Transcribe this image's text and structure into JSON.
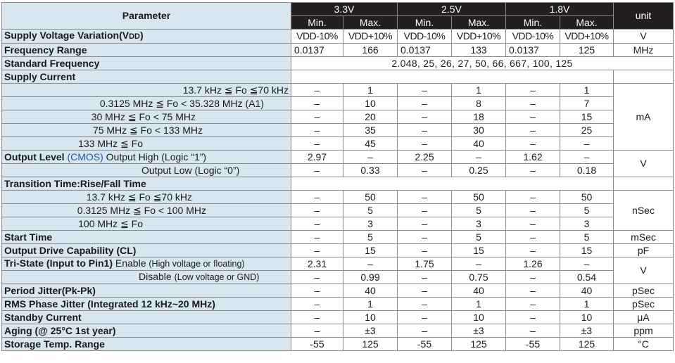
{
  "header": {
    "parameter": "Parameter",
    "unit": "unit",
    "groups": [
      "3.3V",
      "2.5V",
      "1.8V"
    ],
    "min": "Min.",
    "max": "Max."
  },
  "rows": {
    "supply_voltage": {
      "label": "Supply Voltage Variation(V",
      "label_sub": "DD",
      "label_end": ")",
      "values": [
        "VDD-10%",
        "VDD+10%",
        "VDD-10%",
        "VDD+10%",
        "VDD-10%",
        "VDD+10%"
      ],
      "unit": "V"
    },
    "frequency_range": {
      "label": "Frequency Range",
      "values": [
        "0.0137",
        "166",
        "0.0137",
        "133",
        "0.0137",
        "125"
      ],
      "unit": "MHz"
    },
    "standard_frequency": {
      "label": "Standard Frequency",
      "value": "2.048, 25, 26, 27, 50, 66, 667, 100, 125"
    },
    "supply_current": {
      "label": "Supply Current",
      "unit": "mA",
      "sub": [
        {
          "label": "13.7 kHz ≦ Fo ≦70 kHz",
          "values": [
            "–",
            "1",
            "–",
            "1",
            "–",
            "1"
          ]
        },
        {
          "label": "0.3125 MHz ≦ Fo < 35.328 MHz (A1)",
          "values": [
            "–",
            "10",
            "–",
            "8",
            "–",
            "7"
          ]
        },
        {
          "label": "30 MHz ≦ Fo < 75 MHz",
          "values": [
            "–",
            "20",
            "–",
            "18",
            "–",
            "15"
          ]
        },
        {
          "label": "75 MHz ≦ Fo < 133 MHz",
          "values": [
            "–",
            "35",
            "–",
            "30",
            "–",
            "25"
          ]
        },
        {
          "label": "133 MHz ≦ Fo",
          "values": [
            "–",
            "45",
            "–",
            "40",
            "–",
            "–"
          ]
        }
      ]
    },
    "output_level": {
      "label": "Output Level",
      "cmos": "(CMOS)",
      "unit": "V",
      "sub": [
        {
          "label": "Output High (Logic “1”)",
          "values": [
            "2.97",
            "–",
            "2.25",
            "–",
            "1.62",
            "–"
          ]
        },
        {
          "label": "Output Low (Logic “0”)",
          "values": [
            "–",
            "0.33",
            "–",
            "0.25",
            "–",
            "0.18"
          ]
        }
      ]
    },
    "transition_time": {
      "label": "Transition Time:Rise/Fall Time",
      "unit": "nSec",
      "sub": [
        {
          "label": "13.7 kHz ≦ Fo ≦70 kHz",
          "values": [
            "–",
            "50",
            "–",
            "50",
            "–",
            "50"
          ]
        },
        {
          "label": "0.3125 MHz ≦ Fo < 100 MHz",
          "values": [
            "–",
            "5",
            "–",
            "5",
            "–",
            "5"
          ]
        },
        {
          "label": "100 MHz ≦ Fo",
          "values": [
            "–",
            "3",
            "–",
            "3",
            "–",
            "3"
          ]
        }
      ]
    },
    "start_time": {
      "label": "Start Time",
      "values": [
        "–",
        "5",
        "–",
        "5",
        "–",
        "5"
      ],
      "unit": "mSec"
    },
    "output_drive": {
      "label": "Output Drive Capability (CL)",
      "values": [
        "–",
        "15",
        "–",
        "15",
        "–",
        "15"
      ],
      "unit": "pF"
    },
    "tri_state": {
      "label": "Tri-State (Input to Pin1)",
      "unit": "V",
      "enable": "Enable",
      "enable_note": "(High voltage or floating)",
      "disable": "Disable",
      "disable_note": "(Low voltage or GND)",
      "enable_values": [
        "2.31",
        "–",
        "1.75",
        "–",
        "1.26",
        "–"
      ],
      "disable_values": [
        "–",
        "0.99",
        "–",
        "0.75",
        "–",
        "0.54"
      ]
    },
    "period_jitter": {
      "label": "Period Jitter(Pk-Pk)",
      "values": [
        "–",
        "40",
        "–",
        "40",
        "–",
        "40"
      ],
      "unit": "pSec"
    },
    "rms_jitter": {
      "label": "RMS Phase Jitter (Integrated 12 kHz~20 MHz)",
      "values": [
        "–",
        "1",
        "–",
        "1",
        "–",
        "1"
      ],
      "unit": "pSec"
    },
    "standby_current": {
      "label": "Standby Current",
      "values": [
        "–",
        "10",
        "–",
        "10",
        "–",
        "10"
      ],
      "unit": "μA"
    },
    "aging": {
      "label": "Aging (@ 25°C 1st year)",
      "values": [
        "–",
        "±3",
        "–",
        "±3",
        "–",
        "±3"
      ],
      "unit": "ppm"
    },
    "storage_temp": {
      "label": "Storage Temp. Range",
      "values": [
        "-55",
        "125",
        "-55",
        "125",
        "-55",
        "125"
      ],
      "unit": "°C"
    }
  }
}
